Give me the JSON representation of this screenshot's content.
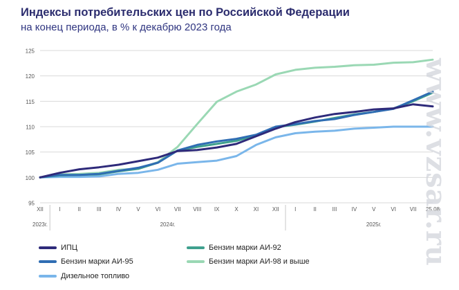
{
  "header": {
    "title": "Индексы потребительских цен по Российской Федерации",
    "subtitle": "на конец периода, в % к декабрю 2023 года"
  },
  "watermark": "www.vzsar.ru",
  "chart_data": {
    "type": "line",
    "title": "Индексы потребительских цен по Российской Федерации",
    "subtitle": "на конец периода, в % к декабрю 2023 года",
    "ylim": [
      95,
      125
    ],
    "yticks": [
      95,
      100,
      105,
      110,
      115,
      120,
      125
    ],
    "grid": "horizontal",
    "legend_position": "bottom",
    "x_labels": [
      "XII",
      "I",
      "II",
      "III",
      "IV",
      "V",
      "VI",
      "VII",
      "VIII",
      "IX",
      "X",
      "XI",
      "XII",
      "I",
      "II",
      "III",
      "IV",
      "V",
      "VI",
      "VII",
      "25.08"
    ],
    "year_labels": [
      {
        "label": "2023г.",
        "index": 0
      },
      {
        "label": "2024г.",
        "index": 6.5
      },
      {
        "label": "2025г.",
        "index": 17
      }
    ],
    "series": [
      {
        "name": "ИПЦ",
        "color": "#2e2a7a",
        "values": [
          100,
          100.9,
          101.6,
          102.0,
          102.5,
          103.2,
          103.9,
          105.2,
          105.4,
          105.9,
          106.6,
          108.1,
          109.6,
          110.9,
          111.8,
          112.5,
          112.9,
          113.4,
          113.6,
          114.4,
          114.0
        ]
      },
      {
        "name": "Бензин марки АИ-92",
        "color": "#3fa08e",
        "values": [
          100,
          100.4,
          100.5,
          100.6,
          101.2,
          101.7,
          102.9,
          105.3,
          106.0,
          106.6,
          107.2,
          108.3,
          109.9,
          110.4,
          111.0,
          111.7,
          112.4,
          112.9,
          113.6,
          115.0,
          116.7
        ]
      },
      {
        "name": "Бензин марки АИ-95",
        "color": "#2f6db3",
        "values": [
          100,
          100.5,
          100.5,
          100.7,
          101.3,
          101.9,
          102.9,
          105.3,
          106.4,
          107.1,
          107.6,
          108.4,
          110.0,
          110.5,
          111.1,
          111.5,
          112.3,
          112.9,
          113.5,
          115.2,
          116.9
        ]
      },
      {
        "name": "Бензин марки АИ-98 и выше",
        "color": "#9ad8b4",
        "values": [
          100,
          100.6,
          100.7,
          100.9,
          101.5,
          101.7,
          103.0,
          106.0,
          110.5,
          114.9,
          116.9,
          118.3,
          120.3,
          121.2,
          121.6,
          121.8,
          122.1,
          122.2,
          122.6,
          122.7,
          123.2
        ]
      },
      {
        "name": "Дизельное топливо",
        "color": "#7ab6ea",
        "values": [
          100,
          100.1,
          100.1,
          100.2,
          100.7,
          100.9,
          101.5,
          102.7,
          103.0,
          103.3,
          104.2,
          106.4,
          107.9,
          108.7,
          109.0,
          109.2,
          109.6,
          109.8,
          110.0,
          110.0,
          110.0
        ]
      }
    ]
  }
}
